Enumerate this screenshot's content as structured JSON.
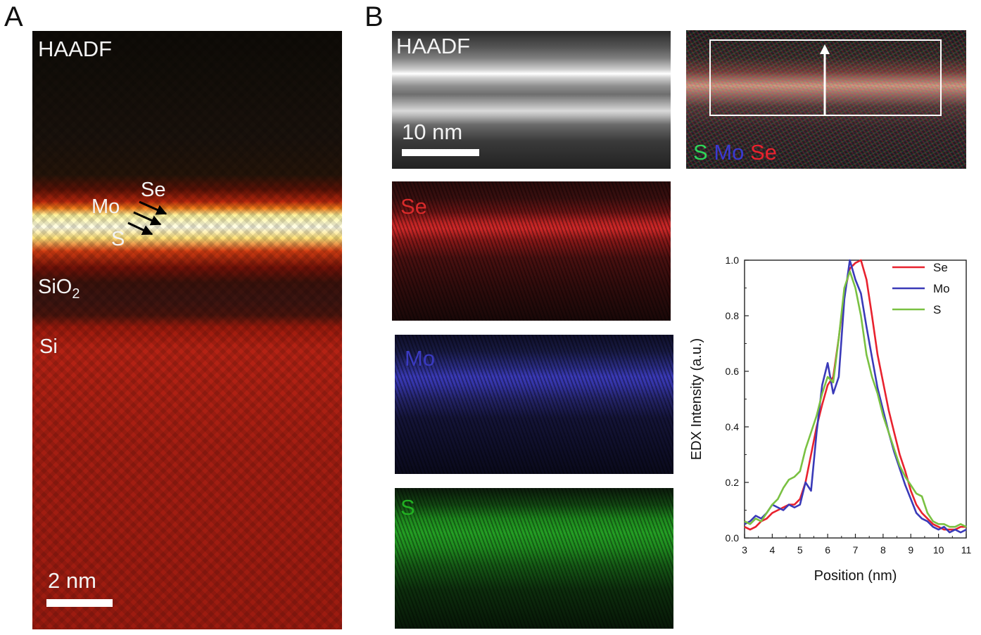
{
  "panels": {
    "a_letter": "A",
    "b_letter": "B"
  },
  "panelA": {
    "haadf": "HAADF",
    "se": "Se",
    "mo": "Mo",
    "s": "S",
    "sio2_main": "SiO",
    "sio2_sub": "2",
    "si": "Si",
    "scale": "2 nm"
  },
  "panelB": {
    "haadf": "HAADF",
    "scale": "10 nm",
    "composite_s": "S",
    "composite_mo": "Mo",
    "composite_se": "Se",
    "map_se": "Se",
    "map_mo": "Mo",
    "map_s": "S"
  },
  "colors": {
    "se": "#e8222e",
    "mo": "#3a3ab8",
    "s": "#7ac142"
  },
  "chart_data": {
    "type": "line",
    "xlabel": "Position (nm)",
    "ylabel": "EDX Intensity (a.u.)",
    "xlim": [
      3,
      11
    ],
    "ylim": [
      0,
      1.0
    ],
    "xticks": [
      "3",
      "4",
      "5",
      "6",
      "7",
      "8",
      "9",
      "10",
      "11"
    ],
    "yticks": [
      "0.0",
      "0.2",
      "0.4",
      "0.6",
      "0.8",
      "1.0"
    ],
    "legend": "top-right",
    "grid": false,
    "series": [
      {
        "name": "Se",
        "color": "#e8222e",
        "x": [
          3.0,
          3.2,
          3.4,
          3.6,
          3.8,
          4.0,
          4.2,
          4.4,
          4.6,
          4.8,
          5.0,
          5.2,
          5.4,
          5.6,
          5.8,
          6.0,
          6.2,
          6.4,
          6.6,
          6.8,
          7.0,
          7.2,
          7.4,
          7.6,
          7.8,
          8.0,
          8.2,
          8.4,
          8.6,
          8.8,
          9.0,
          9.2,
          9.4,
          9.6,
          9.8,
          10.0,
          10.2,
          10.4,
          10.6,
          10.8,
          11.0
        ],
        "y": [
          0.04,
          0.03,
          0.04,
          0.06,
          0.07,
          0.09,
          0.1,
          0.11,
          0.12,
          0.12,
          0.14,
          0.2,
          0.3,
          0.4,
          0.48,
          0.55,
          0.58,
          0.72,
          0.88,
          0.97,
          0.99,
          1.0,
          0.93,
          0.8,
          0.66,
          0.56,
          0.46,
          0.38,
          0.3,
          0.24,
          0.17,
          0.12,
          0.09,
          0.07,
          0.05,
          0.04,
          0.03,
          0.03,
          0.03,
          0.04,
          0.04
        ]
      },
      {
        "name": "Mo",
        "color": "#3a3ab8",
        "x": [
          3.0,
          3.2,
          3.4,
          3.6,
          3.8,
          4.0,
          4.2,
          4.4,
          4.6,
          4.8,
          5.0,
          5.2,
          5.4,
          5.6,
          5.8,
          6.0,
          6.2,
          6.4,
          6.6,
          6.8,
          7.0,
          7.2,
          7.4,
          7.6,
          7.8,
          8.0,
          8.2,
          8.4,
          8.6,
          8.8,
          9.0,
          9.2,
          9.4,
          9.6,
          9.8,
          10.0,
          10.2,
          10.4,
          10.6,
          10.8,
          11.0
        ],
        "y": [
          0.05,
          0.06,
          0.08,
          0.07,
          0.09,
          0.12,
          0.11,
          0.1,
          0.12,
          0.11,
          0.12,
          0.2,
          0.17,
          0.38,
          0.55,
          0.63,
          0.52,
          0.58,
          0.86,
          1.0,
          0.93,
          0.88,
          0.76,
          0.65,
          0.54,
          0.46,
          0.38,
          0.31,
          0.25,
          0.19,
          0.14,
          0.09,
          0.07,
          0.06,
          0.04,
          0.03,
          0.04,
          0.02,
          0.03,
          0.02,
          0.03
        ]
      },
      {
        "name": "S",
        "color": "#7ac142",
        "x": [
          3.0,
          3.2,
          3.4,
          3.6,
          3.8,
          4.0,
          4.2,
          4.4,
          4.6,
          4.8,
          5.0,
          5.2,
          5.4,
          5.6,
          5.8,
          6.0,
          6.2,
          6.4,
          6.6,
          6.8,
          7.0,
          7.2,
          7.4,
          7.6,
          7.8,
          8.0,
          8.2,
          8.4,
          8.6,
          8.8,
          9.0,
          9.2,
          9.4,
          9.6,
          9.8,
          10.0,
          10.2,
          10.4,
          10.6,
          10.8,
          11.0
        ],
        "y": [
          0.06,
          0.05,
          0.07,
          0.06,
          0.09,
          0.12,
          0.14,
          0.18,
          0.21,
          0.22,
          0.24,
          0.32,
          0.38,
          0.44,
          0.52,
          0.58,
          0.56,
          0.72,
          0.9,
          0.96,
          0.9,
          0.8,
          0.66,
          0.58,
          0.52,
          0.44,
          0.38,
          0.32,
          0.26,
          0.22,
          0.19,
          0.16,
          0.15,
          0.09,
          0.06,
          0.05,
          0.05,
          0.04,
          0.04,
          0.05,
          0.04
        ]
      }
    ]
  }
}
